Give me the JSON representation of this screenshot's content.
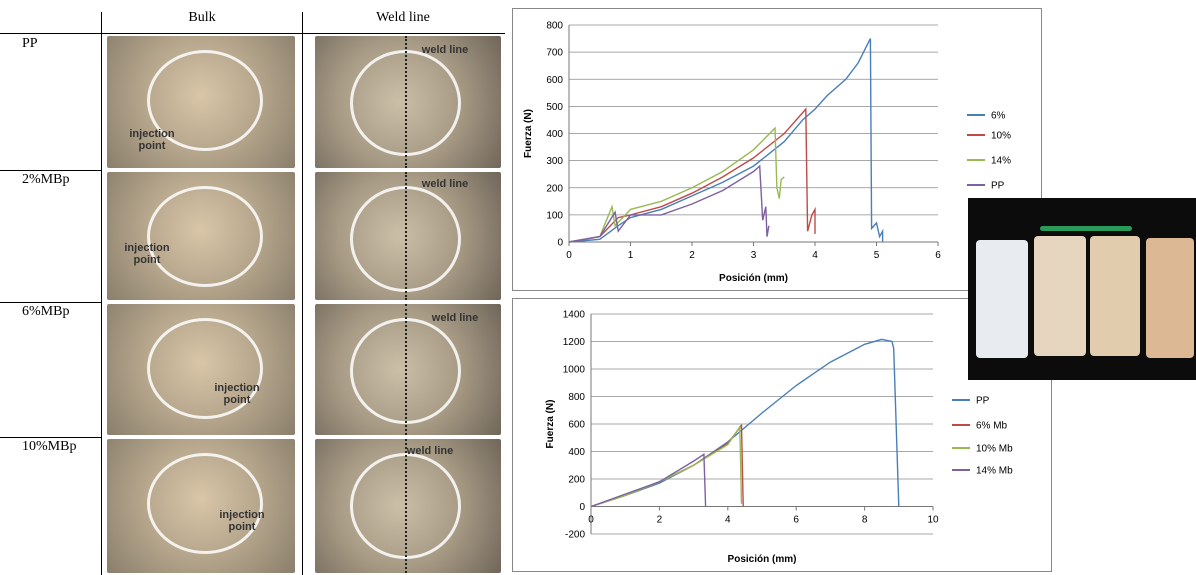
{
  "table": {
    "header": [
      "Bulk",
      "Weld line"
    ],
    "rows": [
      {
        "label": "PP",
        "bulk_note": "injection point",
        "weld_note": "weld line"
      },
      {
        "label": "2%MBp",
        "bulk_note": "injection point",
        "weld_note": "weld line"
      },
      {
        "label": "6%MBp",
        "bulk_note": "injection point",
        "weld_note": "weld line"
      },
      {
        "label": "10%MBp",
        "bulk_note": "injection point",
        "weld_note": "weld line"
      }
    ]
  },
  "chart_data": [
    {
      "type": "line",
      "x_label": "Posición (mm)",
      "y_label": "Fuerza (N)",
      "xlim": [
        0,
        6
      ],
      "ylim": [
        0,
        800
      ],
      "xticks": [
        0,
        1,
        2,
        3,
        4,
        5,
        6
      ],
      "yticks": [
        0,
        100,
        200,
        300,
        400,
        500,
        600,
        700,
        800
      ],
      "grid": true,
      "legend": "right",
      "series": [
        {
          "name": "6%",
          "color": "#4a7ebb",
          "x": [
            0,
            0.5,
            0.8,
            1,
            1.5,
            2,
            2.5,
            3,
            3.5,
            3.8,
            4,
            4.2,
            4.5,
            4.7,
            4.9,
            4.92,
            5,
            5.05,
            5.1,
            5.1
          ],
          "values": [
            0,
            10,
            60,
            90,
            120,
            170,
            220,
            280,
            370,
            450,
            490,
            540,
            600,
            660,
            750,
            50,
            70,
            20,
            40,
            0
          ]
        },
        {
          "name": "10%",
          "color": "#be4b48",
          "x": [
            0,
            0.5,
            0.8,
            1,
            1.5,
            2,
            2.5,
            3,
            3.5,
            3.85,
            3.88,
            3.95,
            4,
            4
          ],
          "values": [
            0,
            20,
            90,
            100,
            130,
            180,
            240,
            310,
            400,
            490,
            40,
            100,
            120,
            30
          ]
        },
        {
          "name": "14%",
          "color": "#98b954",
          "x": [
            0,
            0.5,
            0.7,
            0.75,
            1,
            1.5,
            2,
            2.5,
            3,
            3.35,
            3.38,
            3.42,
            3.45,
            3.5
          ],
          "values": [
            0,
            20,
            130,
            60,
            120,
            150,
            200,
            260,
            340,
            420,
            200,
            160,
            230,
            240
          ]
        },
        {
          "name": "PP",
          "color": "#7d60a0",
          "x": [
            0,
            0.5,
            0.75,
            0.8,
            1,
            1.5,
            2,
            2.5,
            3,
            3.1,
            3.15,
            3.2,
            3.22,
            3.25
          ],
          "values": [
            0,
            20,
            110,
            40,
            100,
            100,
            140,
            190,
            260,
            280,
            80,
            130,
            20,
            60
          ]
        }
      ]
    },
    {
      "type": "line",
      "x_label": "Posición (mm)",
      "y_label": "Fuerza (N)",
      "xlim": [
        0,
        10
      ],
      "ylim": [
        -200,
        1400
      ],
      "xticks": [
        0,
        2,
        4,
        6,
        8,
        10
      ],
      "yticks": [
        -200,
        0,
        200,
        400,
        600,
        800,
        1000,
        1200,
        1400
      ],
      "grid": true,
      "legend": "right",
      "series": [
        {
          "name": "PP",
          "color": "#4a7ebb",
          "x": [
            0,
            1,
            2,
            3,
            4,
            5,
            6,
            7,
            8,
            8.5,
            8.8,
            8.85,
            9
          ],
          "values": [
            0,
            80,
            170,
            300,
            470,
            680,
            880,
            1050,
            1180,
            1215,
            1200,
            1150,
            0
          ]
        },
        {
          "name": "6% Mb",
          "color": "#be4b48",
          "x": [
            0,
            1,
            2,
            3,
            4,
            4.4,
            4.45
          ],
          "values": [
            0,
            80,
            180,
            300,
            460,
            590,
            0
          ]
        },
        {
          "name": "10% Mb",
          "color": "#98b954",
          "x": [
            0,
            1,
            2,
            3,
            4,
            4.35,
            4.4
          ],
          "values": [
            0,
            80,
            180,
            300,
            450,
            580,
            20
          ]
        },
        {
          "name": "14% Mb",
          "color": "#7d60a0",
          "x": [
            0,
            1,
            2,
            3,
            3.3,
            3.35
          ],
          "values": [
            0,
            90,
            180,
            330,
            380,
            0
          ]
        }
      ]
    }
  ]
}
